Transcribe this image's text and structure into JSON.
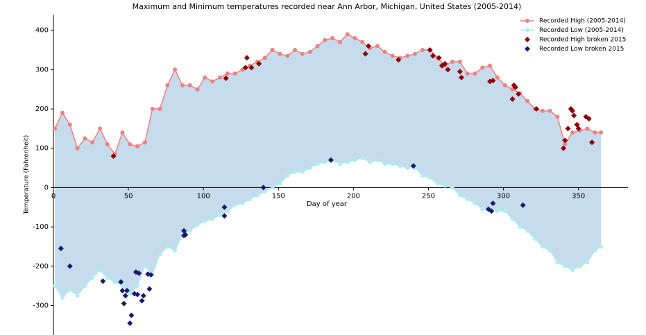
{
  "chart_data": {
    "type": "line",
    "title": "Maximum and Minimum temperatures recorded near Ann Arbor, Michigan, United States (2005-2014)",
    "x_label": "Day of year",
    "y_label": "Temperature (Fahrenheit)",
    "x": [
      1,
      6,
      11,
      16,
      21,
      26,
      31,
      36,
      41,
      46,
      51,
      56,
      61,
      66,
      71,
      76,
      81,
      86,
      91,
      96,
      101,
      106,
      111,
      116,
      121,
      126,
      131,
      136,
      141,
      146,
      151,
      156,
      161,
      166,
      171,
      176,
      181,
      186,
      191,
      196,
      201,
      206,
      211,
      216,
      221,
      226,
      231,
      236,
      241,
      246,
      251,
      256,
      261,
      266,
      271,
      276,
      281,
      286,
      291,
      296,
      301,
      306,
      311,
      316,
      321,
      326,
      331,
      336,
      341,
      346,
      351,
      356,
      361,
      365
    ],
    "series": [
      {
        "name": "Recorded High (2005-2014)",
        "color": "#f08080",
        "values": [
          150,
          190,
          160,
          100,
          125,
          115,
          150,
          110,
          85,
          140,
          110,
          105,
          115,
          200,
          200,
          260,
          300,
          260,
          260,
          250,
          280,
          270,
          280,
          290,
          290,
          300,
          310,
          320,
          330,
          350,
          340,
          335,
          350,
          340,
          345,
          360,
          375,
          380,
          370,
          390,
          380,
          370,
          355,
          360,
          345,
          335,
          330,
          335,
          340,
          350,
          350,
          330,
          310,
          320,
          320,
          290,
          290,
          305,
          310,
          280,
          260,
          250,
          240,
          220,
          200,
          195,
          195,
          180,
          110,
          140,
          145,
          150,
          140,
          140
        ]
      },
      {
        "name": "Recorded Low (2005-2014)",
        "color": "#aeeeee",
        "values": [
          -250,
          -280,
          -260,
          -275,
          -250,
          -230,
          -210,
          -230,
          -240,
          -250,
          -270,
          -250,
          -200,
          -220,
          -170,
          -150,
          -160,
          -120,
          -110,
          -95,
          -85,
          -80,
          -70,
          -60,
          -45,
          -40,
          -30,
          -20,
          -10,
          0,
          10,
          30,
          40,
          40,
          50,
          60,
          65,
          70,
          60,
          65,
          70,
          75,
          65,
          70,
          60,
          60,
          55,
          50,
          50,
          30,
          25,
          10,
          5,
          0,
          -20,
          -30,
          -40,
          -55,
          -55,
          -60,
          -60,
          -80,
          -100,
          -110,
          -130,
          -150,
          -160,
          -190,
          -200,
          -210,
          -200,
          -190,
          -160,
          -150
        ]
      }
    ],
    "scatter": [
      {
        "name": "Recorded High broken 2015",
        "color": "#8b0000",
        "x": [
          40,
          115,
          128,
          129,
          132,
          137,
          208,
          210,
          230,
          251,
          253,
          257,
          259,
          261,
          263,
          271,
          272,
          291,
          293,
          306,
          307,
          308,
          310,
          322,
          340,
          341,
          343,
          345,
          346,
          347,
          349,
          350,
          355,
          357,
          359
        ],
        "values": [
          80,
          278,
          305,
          330,
          305,
          315,
          340,
          360,
          325,
          350,
          335,
          330,
          310,
          315,
          300,
          295,
          280,
          270,
          272,
          225,
          260,
          255,
          238,
          200,
          100,
          120,
          150,
          200,
          195,
          183,
          160,
          150,
          180,
          175,
          115
        ]
      },
      {
        "name": "Recorded Low broken 2015",
        "color": "#191970",
        "x": [
          5,
          11,
          33,
          45,
          46,
          47,
          48,
          49,
          51,
          52,
          54,
          55,
          56,
          57,
          59,
          60,
          63,
          64,
          65,
          87,
          87,
          88,
          114,
          114,
          140,
          185,
          240,
          290,
          292,
          293,
          313
        ],
        "values": [
          -155,
          -200,
          -238,
          -240,
          -262,
          -295,
          -275,
          -262,
          -345,
          -325,
          -270,
          -215,
          -272,
          -218,
          -288,
          -275,
          -220,
          -258,
          -222,
          -110,
          -122,
          -120,
          -50,
          -72,
          0,
          70,
          55,
          -55,
          -60,
          -40,
          -45
        ]
      }
    ],
    "fill_color": "#c6dbeb",
    "xlim": [
      0,
      383
    ],
    "ylim": [
      -375,
      440
    ],
    "xticks": [
      0,
      50,
      100,
      150,
      200,
      250,
      300,
      350
    ],
    "yticks": [
      -300,
      -200,
      -100,
      0,
      100,
      200,
      300,
      400
    ],
    "legend": "upper right"
  }
}
